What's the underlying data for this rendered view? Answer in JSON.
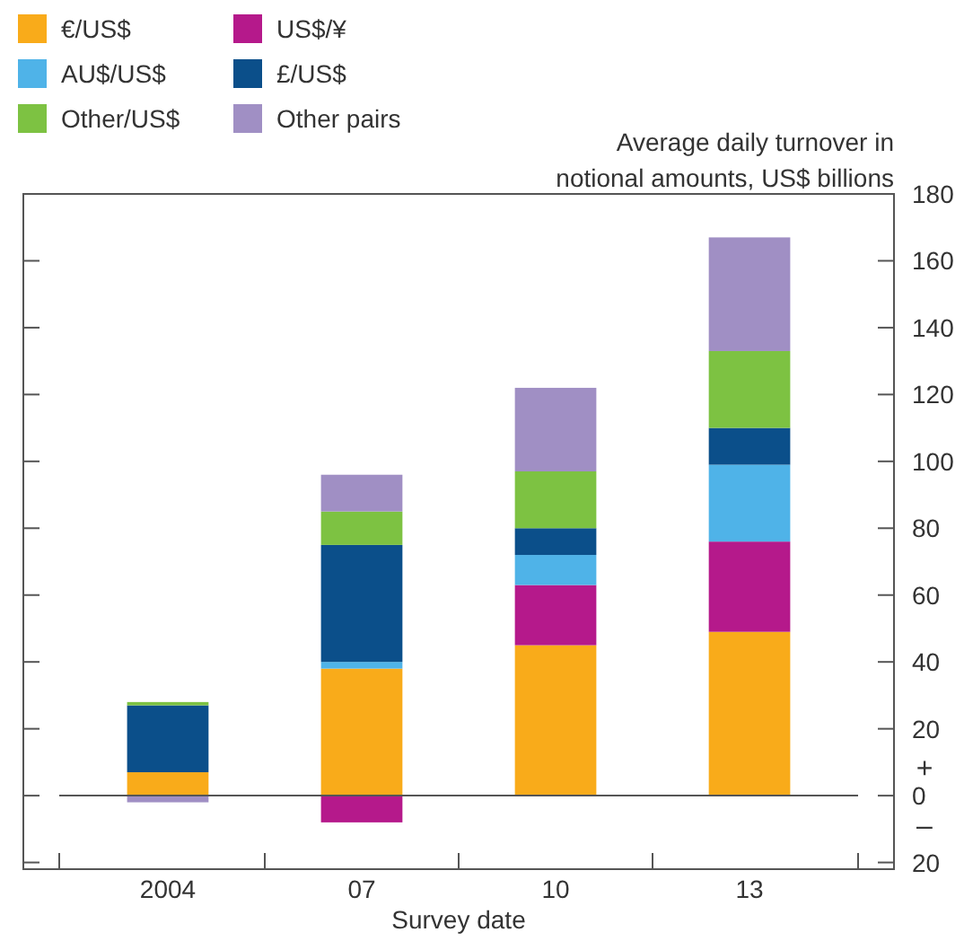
{
  "chart_data": {
    "type": "bar",
    "stacked": true,
    "ylabel": "Average daily turnover in notional amounts, US$ billions",
    "xlabel": "Survey date",
    "categories": [
      "2004",
      "07",
      "10",
      "13"
    ],
    "series": [
      {
        "name": "€/US$",
        "color": "#f9ab1a",
        "values": [
          7,
          38,
          45,
          49
        ]
      },
      {
        "name": "US$/¥",
        "color": "#b5198b",
        "values": [
          null,
          -8,
          18,
          27
        ]
      },
      {
        "name": "AU$/US$",
        "color": "#4fb3e8",
        "values": [
          null,
          2,
          9,
          23
        ]
      },
      {
        "name": "£/US$",
        "color": "#0b4f8a",
        "values": [
          20,
          35,
          8,
          11
        ]
      },
      {
        "name": "Other/US$",
        "color": "#7dc242",
        "values": [
          1,
          10,
          17,
          23
        ]
      },
      {
        "name": "Other pairs",
        "color": "#a08fc4",
        "values": [
          -2,
          11,
          25,
          34
        ]
      }
    ],
    "ylim": [
      -22,
      180
    ],
    "yticks": [
      {
        "value": -20,
        "label": "20"
      },
      0,
      20,
      40,
      60,
      80,
      100,
      120,
      140,
      160,
      180
    ],
    "annotations": [
      "+",
      "–"
    ],
    "legend": "top left"
  }
}
